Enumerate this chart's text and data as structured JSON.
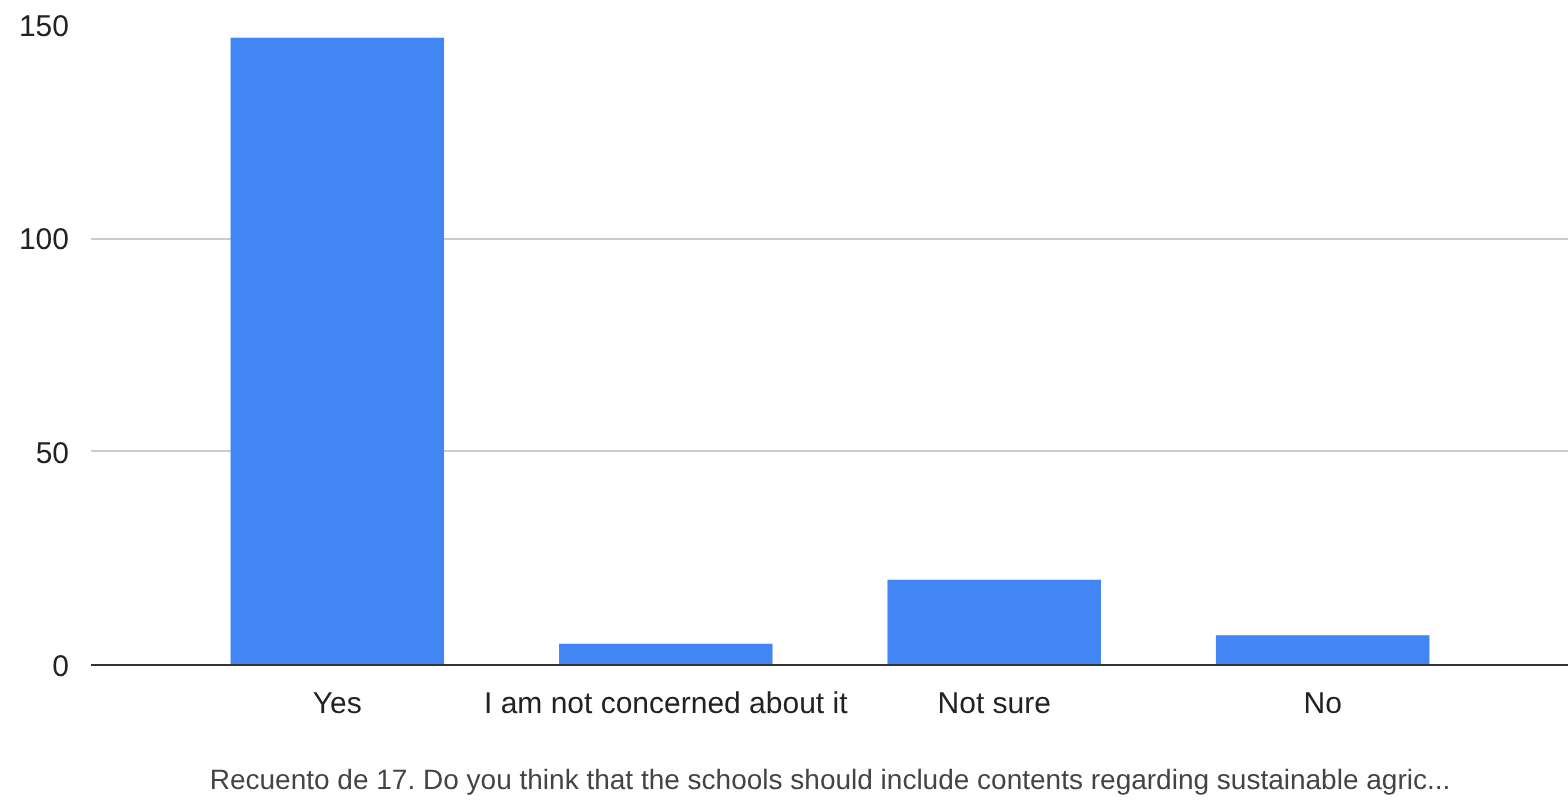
{
  "chart_data": {
    "type": "bar",
    "xlabel": "Recuento de 17. Do you think that the schools should include contents regarding sustainable agric...",
    "categories": [
      "Yes",
      "I am not concerned about it",
      "Not sure",
      "No"
    ],
    "values": [
      147,
      5,
      20,
      7
    ],
    "color": "#4285f4",
    "ylim": [
      0,
      150
    ],
    "yticks": [
      0,
      50,
      100,
      150
    ],
    "grid": "y"
  }
}
